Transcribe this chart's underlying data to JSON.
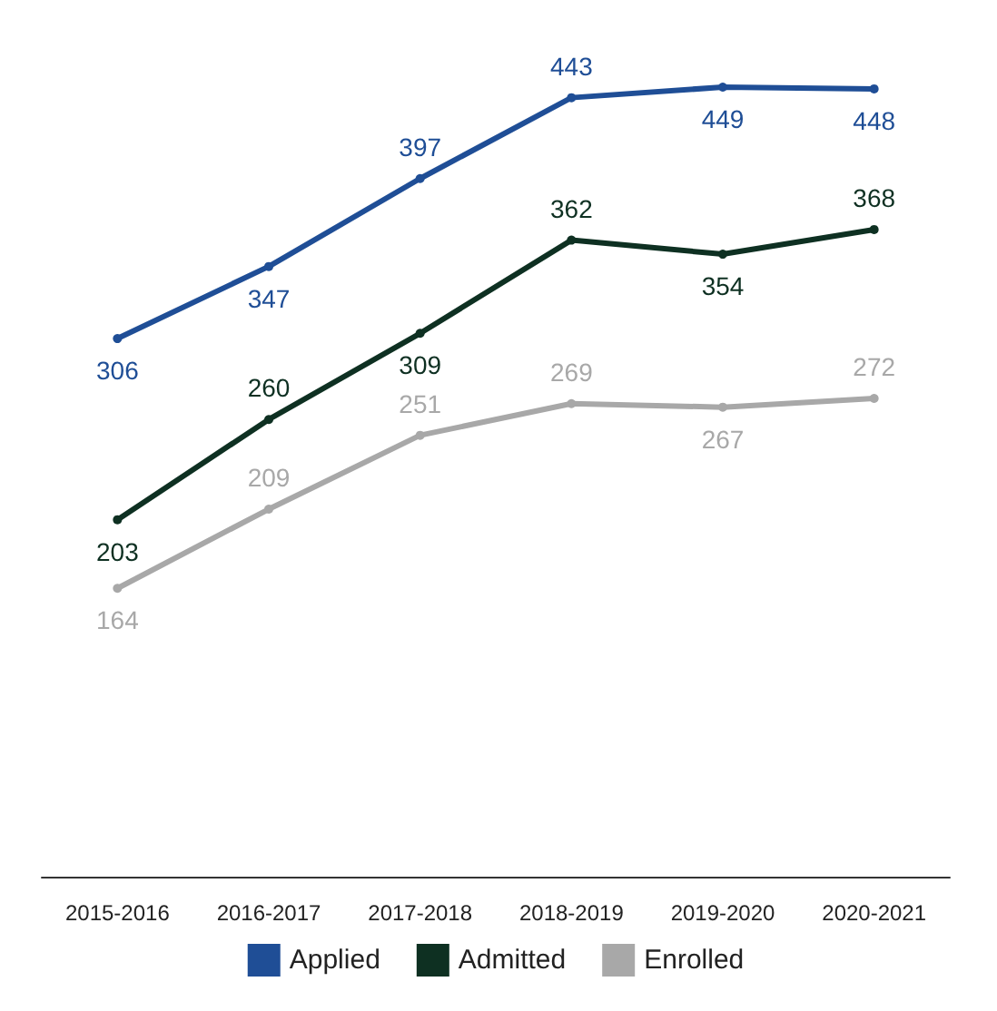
{
  "chart_data": {
    "type": "line",
    "categories": [
      "2015-2016",
      "2016-2017",
      "2017-2018",
      "2018-2019",
      "2019-2020",
      "2020-2021"
    ],
    "series": [
      {
        "name": "Applied",
        "color": "#1f4e96",
        "values": [
          306,
          347,
          397,
          443,
          449,
          448
        ]
      },
      {
        "name": "Admitted",
        "color": "#0e3022",
        "values": [
          203,
          260,
          309,
          362,
          354,
          368
        ]
      },
      {
        "name": "Enrolled",
        "color": "#a8a8a8",
        "values": [
          164,
          209,
          251,
          269,
          267,
          272
        ]
      }
    ],
    "tick_labels": "x",
    "data_labels": true,
    "legend": "bottom",
    "marker": "circle",
    "line_style": "solid",
    "grid": false
  }
}
